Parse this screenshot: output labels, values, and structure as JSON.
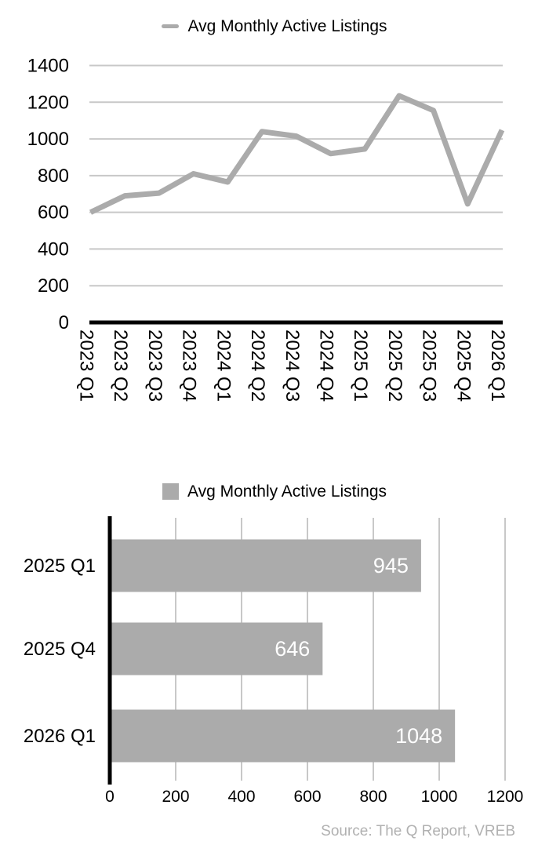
{
  "source": {
    "text": "Source: The Q Report, VREB"
  },
  "colors": {
    "series": "#ABABAB",
    "gridline": "#C8C8C8",
    "axis": "#000000",
    "tick_label": "#000000",
    "value_label": "#FFFFFF",
    "source_text": "#B1B1B1"
  },
  "chart_data": [
    {
      "type": "line",
      "legend": "Avg Monthly Active Listings",
      "legend_position": "top-center",
      "categories": [
        "2023 Q1",
        "2023 Q2",
        "2023 Q3",
        "2023 Q4",
        "2024 Q1",
        "2024 Q2",
        "2024 Q3",
        "2024 Q4",
        "2025 Q1",
        "2025 Q2",
        "2025 Q3",
        "2025 Q4",
        "2026 Q1"
      ],
      "values": [
        600,
        690,
        705,
        810,
        765,
        1040,
        1015,
        920,
        945,
        1235,
        1155,
        646,
        1048
      ],
      "ylim": [
        0,
        1400
      ],
      "yticks": [
        0,
        200,
        400,
        600,
        800,
        1000,
        1200,
        1400
      ],
      "grid": "horizontal",
      "x_tick_rotation": 90
    },
    {
      "type": "bar",
      "orientation": "horizontal",
      "legend": "Avg Monthly Active Listings",
      "legend_position": "top-center",
      "categories": [
        "2025 Q1",
        "2025 Q4",
        "2026 Q1"
      ],
      "values": [
        945,
        646,
        1048
      ],
      "xlim": [
        0,
        1200
      ],
      "xticks": [
        0,
        200,
        400,
        600,
        800,
        1000,
        1200
      ],
      "grid": "vertical",
      "value_labels": "inside-end"
    }
  ]
}
